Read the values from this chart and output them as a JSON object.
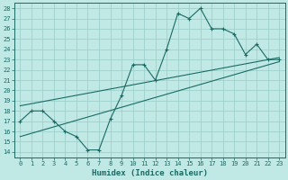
{
  "xlabel": "Humidex (Indice chaleur)",
  "ylabel": "",
  "xlim": [
    -0.5,
    23.5
  ],
  "ylim": [
    13.5,
    28.5
  ],
  "xticks": [
    0,
    1,
    2,
    3,
    4,
    5,
    6,
    7,
    8,
    9,
    10,
    11,
    12,
    13,
    14,
    15,
    16,
    17,
    18,
    19,
    20,
    21,
    22,
    23
  ],
  "yticks": [
    14,
    15,
    16,
    17,
    18,
    19,
    20,
    21,
    22,
    23,
    24,
    25,
    26,
    27,
    28
  ],
  "bg_color": "#c0e8e4",
  "grid_color": "#99ccc8",
  "line_color": "#1a6b65",
  "curve_x": [
    0,
    1,
    2,
    3,
    4,
    5,
    6,
    7,
    8,
    9,
    10,
    11,
    12,
    13,
    14,
    15,
    16,
    17,
    18,
    19,
    20,
    21,
    22,
    23
  ],
  "curve_y": [
    17,
    18,
    18,
    17,
    16,
    15.5,
    14.2,
    14.2,
    17.2,
    19.5,
    22.5,
    22.5,
    21,
    24,
    27.5,
    27,
    28,
    26,
    26,
    25.5,
    23.5,
    24.5,
    23,
    23
  ],
  "trend1_x": [
    0,
    23
  ],
  "trend1_y": [
    18.5,
    23.2
  ],
  "trend2_x": [
    0,
    23
  ],
  "trend2_y": [
    15.5,
    22.8
  ]
}
